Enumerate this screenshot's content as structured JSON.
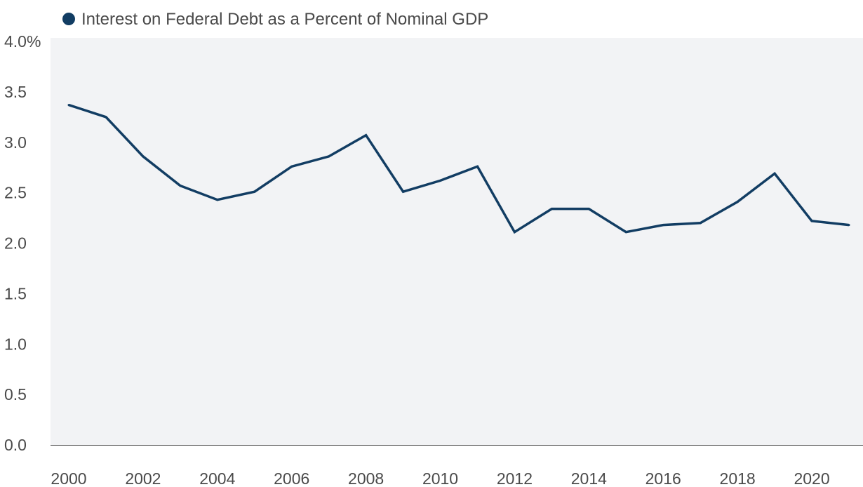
{
  "chart_data": {
    "type": "line",
    "legend": {
      "position": "top-left",
      "entries": [
        "Interest on Federal Debt as a Percent of Nominal GDP"
      ]
    },
    "colors": {
      "series": "#123d63",
      "plot_background": "#f2f3f5",
      "axis": "#4a4a4a"
    },
    "grid": false,
    "ylim": [
      0,
      4
    ],
    "y_ticks": [
      {
        "value": 4.0,
        "label": "4.0%"
      },
      {
        "value": 3.5,
        "label": "3.5"
      },
      {
        "value": 3.0,
        "label": "3.0"
      },
      {
        "value": 2.5,
        "label": "2.5"
      },
      {
        "value": 2.0,
        "label": "2.0"
      },
      {
        "value": 1.5,
        "label": "1.5"
      },
      {
        "value": 1.0,
        "label": "1.0"
      },
      {
        "value": 0.5,
        "label": "0.5"
      },
      {
        "value": 0.0,
        "label": "0.0"
      }
    ],
    "x_ticks": [
      "2000",
      "2002",
      "2004",
      "2006",
      "2008",
      "2010",
      "2012",
      "2014",
      "2016",
      "2018",
      "2020"
    ],
    "xlim": [
      2000,
      2021
    ],
    "series": [
      {
        "name": "Interest on Federal Debt as a Percent of Nominal GDP",
        "x": [
          2000,
          2001,
          2002,
          2003,
          2004,
          2005,
          2006,
          2007,
          2008,
          2009,
          2010,
          2011,
          2012,
          2013,
          2014,
          2015,
          2016,
          2017,
          2018,
          2019,
          2020,
          2021
        ],
        "values": [
          3.37,
          3.25,
          2.86,
          2.57,
          2.43,
          2.51,
          2.76,
          2.86,
          3.07,
          2.51,
          2.62,
          2.76,
          2.11,
          2.34,
          2.34,
          2.11,
          2.18,
          2.2,
          2.41,
          2.69,
          2.22,
          2.18
        ]
      }
    ]
  }
}
